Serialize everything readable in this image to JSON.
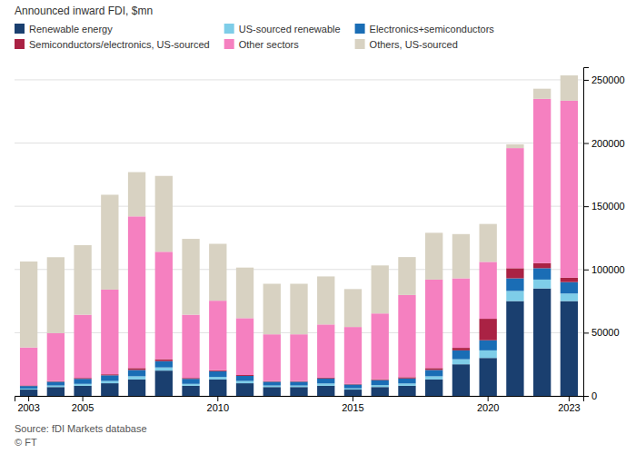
{
  "chart_data": {
    "type": "bar",
    "stacked": true,
    "ylabel": "Announced inward FDI, $mn",
    "annotations": [
      "Source: fDI Markets database",
      "© FT"
    ],
    "categories": [
      2003,
      null,
      2005,
      null,
      null,
      null,
      null,
      2010,
      null,
      null,
      null,
      null,
      2015,
      null,
      null,
      null,
      null,
      2020,
      null,
      null,
      2023
    ],
    "series": [
      {
        "name": "Renewable energy",
        "color": "#1a3f6f",
        "values": [
          5000,
          7000,
          8000,
          10000,
          13000,
          20000,
          8000,
          13000,
          10000,
          7000,
          7000,
          8000,
          5000,
          7000,
          8000,
          13000,
          25000,
          30000,
          75000,
          85000,
          75000
        ]
      },
      {
        "name": "US-sourced renewable",
        "color": "#7ecde8",
        "values": [
          800,
          1200,
          1500,
          1800,
          2500,
          2500,
          1500,
          2000,
          1800,
          1200,
          1200,
          1800,
          1000,
          1500,
          1800,
          2500,
          4000,
          6000,
          8000,
          7000,
          6000
        ]
      },
      {
        "name": "Electronics+semiconductors",
        "color": "#1a6db5",
        "values": [
          2000,
          3000,
          4000,
          4500,
          5000,
          5000,
          4000,
          4500,
          4000,
          3000,
          3000,
          4000,
          3000,
          4000,
          4000,
          5000,
          7000,
          8000,
          10000,
          9000,
          9000
        ]
      },
      {
        "name": "Semiconductors/electronics, US-sourced",
        "color": "#aa2244",
        "values": [
          500,
          500,
          700,
          800,
          1500,
          1500,
          700,
          800,
          700,
          500,
          500,
          700,
          500,
          700,
          1000,
          1500,
          2000,
          17000,
          8000,
          4000,
          3500
        ]
      },
      {
        "name": "Other sectors",
        "color": "#f580c0",
        "values": [
          30000,
          38000,
          50000,
          67000,
          120000,
          85000,
          50000,
          55000,
          45000,
          37000,
          37000,
          42000,
          45000,
          52000,
          65000,
          70000,
          55000,
          45000,
          95000,
          130000,
          140000
        ]
      },
      {
        "name": "Others, US-sourced",
        "color": "#d8d2c2",
        "values": [
          68000,
          60000,
          55000,
          75000,
          35000,
          60000,
          60000,
          45000,
          40000,
          40000,
          40000,
          38000,
          30000,
          38000,
          30000,
          37000,
          35000,
          30000,
          3000,
          8000,
          20000
        ]
      }
    ],
    "ylim": [
      0,
      260000
    ],
    "yticks": [
      0,
      50000,
      100000,
      150000,
      200000,
      250000
    ],
    "grid": true,
    "legend": "upper left"
  }
}
